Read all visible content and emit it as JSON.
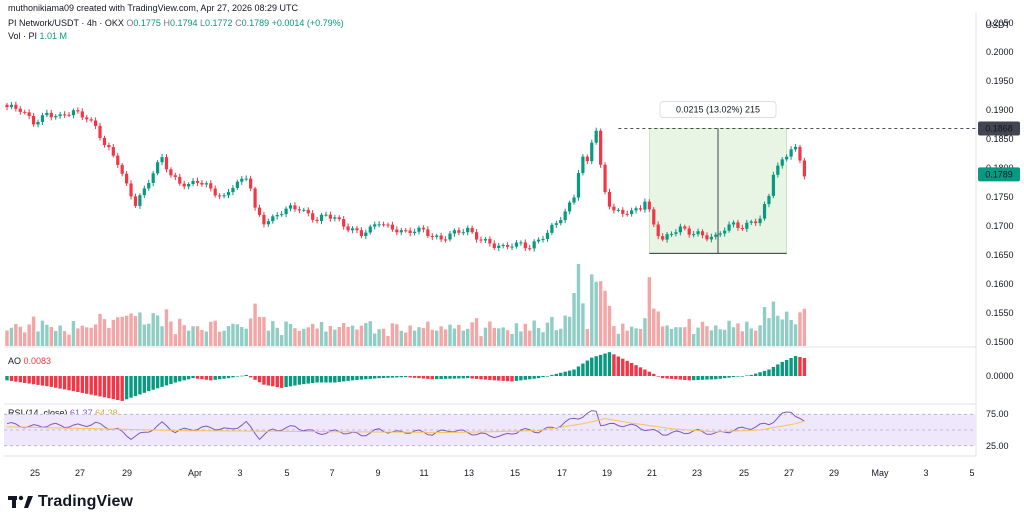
{
  "header": {
    "credit": "muthonikiama09 created with TradingView.com, Apr 27, 2026 08:29 UTC"
  },
  "legend": {
    "symbol": "PI Network/USDT · 4h · OKX",
    "open_label": "O",
    "open": "0.1775",
    "high_label": "H",
    "high": "0.1794",
    "low_label": "L",
    "low": "0.1772",
    "close_label": "C",
    "close": "0.1789",
    "change": "+0.0014 (+0.79%)",
    "volume_label": "Vol · PI",
    "volume": "1.01 M",
    "ao_label": "AO",
    "ao_value": "0.0083",
    "rsi_label": "RSI (14, close)",
    "rsi_value": "61.37",
    "rsi_ma": "64.38"
  },
  "price_axis": {
    "currency": "USDT",
    "labels": [
      "0.2050",
      "0.2000",
      "0.1950",
      "0.1900",
      "0.1850",
      "0.1800",
      "0.1750",
      "0.1700",
      "0.1650",
      "0.1600",
      "0.1550",
      "0.1500"
    ],
    "marker_high": "0.1868",
    "marker_last": "0.1789",
    "ao_zero": "0.0000",
    "rsi_labels": [
      "75.00",
      "25.00"
    ]
  },
  "date_axis": {
    "labels": [
      "25",
      "27",
      "29",
      "Apr",
      "3",
      "5",
      "7",
      "9",
      "11",
      "13",
      "15",
      "17",
      "19",
      "21",
      "23",
      "25",
      "27",
      "29",
      "May",
      "3",
      "5"
    ]
  },
  "measure": {
    "text": "0.0215 (13.02%) 215"
  },
  "brand": {
    "name": "TradingView"
  },
  "colors": {
    "up": "#089981",
    "down": "#f23645",
    "vol_up": "#8fcdc5",
    "vol_down": "#f3a6a6",
    "rsi_line": "#7e57c2",
    "rsi_ma": "#f7c55a",
    "rsi_band": "#efe7fb",
    "measure_fill": "#e8f5e4"
  },
  "chart_data": {
    "type": "candlestick",
    "timeframe": "4h",
    "last_close": 0.1789,
    "y_range": [
      0.1495,
      0.2055
    ],
    "x_range": [
      "Mar 24",
      "May 5"
    ],
    "measure_range": {
      "from": 0.1653,
      "to": 0.1868,
      "change": 0.0215,
      "percent": 13.02,
      "bars": 215
    },
    "price_path": [
      [
        0,
        0.1905
      ],
      [
        3,
        0.1898
      ],
      [
        6,
        0.188
      ],
      [
        9,
        0.1895
      ],
      [
        12,
        0.1885
      ],
      [
        15,
        0.1898
      ],
      [
        18,
        0.189
      ],
      [
        20,
        0.187
      ],
      [
        22,
        0.1838
      ],
      [
        25,
        0.181
      ],
      [
        27,
        0.1772
      ],
      [
        29,
        0.174
      ],
      [
        31,
        0.176
      ],
      [
        33,
        0.179
      ],
      [
        35,
        0.1818
      ],
      [
        37,
        0.179
      ],
      [
        39,
        0.1776
      ],
      [
        41,
        0.1768
      ],
      [
        43,
        0.1775
      ],
      [
        45,
        0.177
      ],
      [
        47,
        0.176
      ],
      [
        49,
        0.175
      ],
      [
        51,
        0.1768
      ],
      [
        53,
        0.1775
      ],
      [
        54.5,
        0.1787
      ],
      [
        56,
        0.173
      ],
      [
        58,
        0.171
      ],
      [
        60,
        0.1712
      ],
      [
        62,
        0.1722
      ],
      [
        64,
        0.173
      ],
      [
        66,
        0.1733
      ],
      [
        68,
        0.1722
      ],
      [
        70,
        0.171
      ],
      [
        72,
        0.1716
      ],
      [
        74,
        0.1713
      ],
      [
        76,
        0.1703
      ],
      [
        78,
        0.1696
      ],
      [
        80,
        0.1686
      ],
      [
        82,
        0.1692
      ],
      [
        84,
        0.1706
      ],
      [
        86,
        0.17
      ],
      [
        88,
        0.1696
      ],
      [
        90,
        0.1688
      ],
      [
        92,
        0.169
      ],
      [
        94,
        0.1691
      ],
      [
        96,
        0.1684
      ],
      [
        98,
        0.168
      ],
      [
        100,
        0.1685
      ],
      [
        102,
        0.1688
      ],
      [
        104,
        0.1692
      ],
      [
        106,
        0.1683
      ],
      [
        108,
        0.1676
      ],
      [
        110,
        0.1666
      ],
      [
        112,
        0.166
      ],
      [
        114,
        0.1667
      ],
      [
        116,
        0.1671
      ],
      [
        118,
        0.1666
      ],
      [
        120,
        0.1675
      ],
      [
        122,
        0.1685
      ],
      [
        124,
        0.1705
      ],
      [
        126,
        0.1725
      ],
      [
        128,
        0.1755
      ],
      [
        129,
        0.1795
      ],
      [
        130,
        0.1815
      ],
      [
        131,
        0.1808
      ],
      [
        132,
        0.1845
      ],
      [
        133,
        0.1862
      ],
      [
        134,
        0.18
      ],
      [
        135,
        0.176
      ],
      [
        136,
        0.174
      ],
      [
        137,
        0.1728
      ],
      [
        139,
        0.1725
      ],
      [
        141,
        0.1721
      ],
      [
        143,
        0.173
      ],
      [
        144,
        0.1742
      ],
      [
        145,
        0.1725
      ],
      [
        146,
        0.1705
      ],
      [
        147,
        0.169
      ],
      [
        148,
        0.1678
      ],
      [
        150,
        0.1688
      ],
      [
        152,
        0.1693
      ],
      [
        154,
        0.1688
      ],
      [
        156,
        0.1689
      ],
      [
        158,
        0.1684
      ],
      [
        160,
        0.168
      ],
      [
        162,
        0.1693
      ],
      [
        164,
        0.1702
      ],
      [
        166,
        0.17
      ],
      [
        168,
        0.1709
      ],
      [
        170,
        0.1712
      ],
      [
        172,
        0.175
      ],
      [
        173,
        0.179
      ],
      [
        175,
        0.1812
      ],
      [
        177,
        0.1838
      ],
      [
        178,
        0.1835
      ],
      [
        179,
        0.1812
      ],
      [
        180,
        0.1789
      ]
    ],
    "ao_range": [
      -0.012,
      0.012
    ],
    "ao_path": [
      [
        0,
        -0.002
      ],
      [
        10,
        -0.005
      ],
      [
        20,
        -0.009
      ],
      [
        26,
        -0.0115
      ],
      [
        32,
        -0.007
      ],
      [
        38,
        -0.003
      ],
      [
        42,
        -0.001
      ],
      [
        46,
        -0.002
      ],
      [
        50,
        -0.001
      ],
      [
        54,
        0.0005
      ],
      [
        58,
        -0.004
      ],
      [
        62,
        -0.0055
      ],
      [
        66,
        -0.004
      ],
      [
        70,
        -0.003
      ],
      [
        74,
        -0.003
      ],
      [
        78,
        -0.002
      ],
      [
        84,
        -0.001
      ],
      [
        90,
        -0.0005
      ],
      [
        96,
        -0.0015
      ],
      [
        104,
        -0.001
      ],
      [
        110,
        -0.002
      ],
      [
        114,
        -0.0025
      ],
      [
        120,
        -0.001
      ],
      [
        124,
        0.001
      ],
      [
        128,
        0.003
      ],
      [
        132,
        0.0085
      ],
      [
        136,
        0.011
      ],
      [
        140,
        0.007
      ],
      [
        144,
        0.003
      ],
      [
        148,
        -0.001
      ],
      [
        154,
        -0.002
      ],
      [
        160,
        -0.0015
      ],
      [
        164,
        -0.0005
      ],
      [
        168,
        0.0005
      ],
      [
        172,
        0.003
      ],
      [
        175,
        0.0065
      ],
      [
        178,
        0.0092
      ],
      [
        180,
        0.0083
      ]
    ],
    "rsi_range": [
      12,
      88
    ],
    "rsi_path": [
      [
        0,
        60
      ],
      [
        5,
        55
      ],
      [
        10,
        58
      ],
      [
        15,
        56
      ],
      [
        20,
        60
      ],
      [
        25,
        50
      ],
      [
        28,
        38
      ],
      [
        31,
        45
      ],
      [
        35,
        60
      ],
      [
        38,
        48
      ],
      [
        42,
        52
      ],
      [
        46,
        54
      ],
      [
        50,
        50
      ],
      [
        54,
        61
      ],
      [
        57,
        38
      ],
      [
        60,
        50
      ],
      [
        65,
        55
      ],
      [
        70,
        45
      ],
      [
        75,
        48
      ],
      [
        80,
        42
      ],
      [
        84,
        50
      ],
      [
        88,
        46
      ],
      [
        92,
        48
      ],
      [
        96,
        44
      ],
      [
        100,
        50
      ],
      [
        104,
        46
      ],
      [
        108,
        42
      ],
      [
        112,
        40
      ],
      [
        116,
        50
      ],
      [
        120,
        48
      ],
      [
        124,
        55
      ],
      [
        128,
        68
      ],
      [
        130,
        72
      ],
      [
        132,
        78
      ],
      [
        133,
        80
      ],
      [
        134,
        60
      ],
      [
        136,
        58
      ],
      [
        140,
        58
      ],
      [
        144,
        52
      ],
      [
        148,
        44
      ],
      [
        152,
        46
      ],
      [
        156,
        48
      ],
      [
        160,
        44
      ],
      [
        164,
        50
      ],
      [
        168,
        54
      ],
      [
        172,
        60
      ],
      [
        175,
        74
      ],
      [
        177,
        80
      ],
      [
        178,
        74
      ],
      [
        180,
        61
      ]
    ],
    "rsi_ma_path": [
      [
        0,
        55
      ],
      [
        20,
        52
      ],
      [
        40,
        49
      ],
      [
        60,
        48
      ],
      [
        80,
        47
      ],
      [
        100,
        46
      ],
      [
        120,
        49
      ],
      [
        130,
        60
      ],
      [
        135,
        68
      ],
      [
        140,
        62
      ],
      [
        150,
        52
      ],
      [
        160,
        47
      ],
      [
        170,
        50
      ],
      [
        178,
        60
      ],
      [
        180,
        64
      ]
    ]
  }
}
